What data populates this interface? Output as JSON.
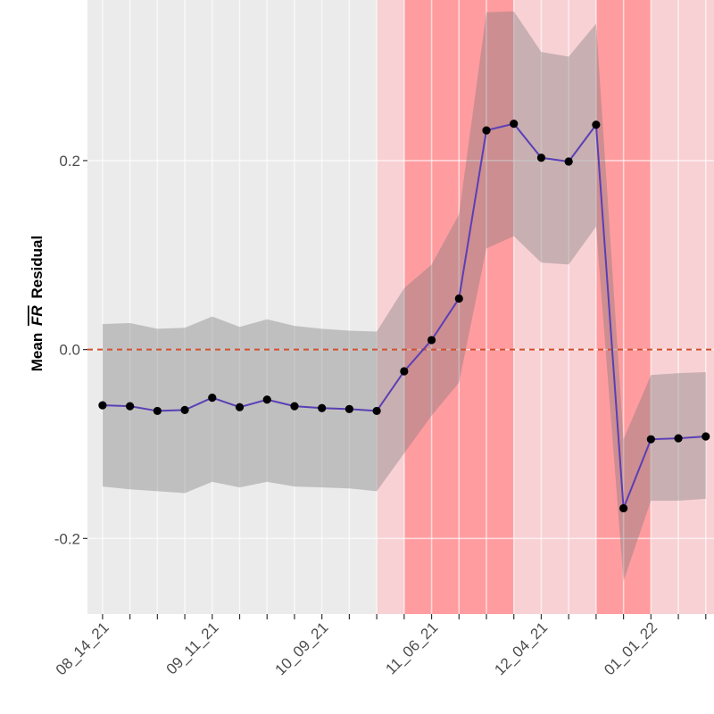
{
  "chart_data": {
    "type": "line",
    "title": "",
    "ylabel_main": "Mean",
    "ylabel_symbol": "FR",
    "ylabel_suffix": "Residual",
    "ylim": [
      -0.28,
      0.37
    ],
    "yticks": [
      -0.2,
      0.0,
      0.2
    ],
    "ytick_labels": [
      "-0.2",
      "0.0",
      "0.2"
    ],
    "x_index_range": [
      -0.55,
      22.3
    ],
    "xtick_positions": [
      0,
      4,
      8,
      12,
      16,
      20
    ],
    "xtick_labels": [
      "08_14_21",
      "09_11_21",
      "10_09_21",
      "11_06_21",
      "12_04_21",
      "01_01_22"
    ],
    "reference_line": {
      "y": 0.0,
      "color": "#d2502e",
      "style": "dashed"
    },
    "shaded_periods": [
      {
        "x_start": 10,
        "x_end": 22.3,
        "color": "#f8d1d4"
      },
      {
        "x_start": 11,
        "x_end": 15,
        "color": "#ff9ca0"
      },
      {
        "x_start": 18,
        "x_end": 20,
        "color": "#ff9ca0"
      }
    ],
    "series": [
      {
        "x": [
          0,
          1,
          2,
          3,
          4,
          5,
          6,
          7,
          8,
          9,
          10,
          11,
          12,
          13,
          14,
          15,
          16,
          17,
          18,
          19,
          20,
          21,
          22
        ],
        "values": [
          -0.059,
          -0.06,
          -0.065,
          -0.064,
          -0.051,
          -0.061,
          -0.053,
          -0.06,
          -0.062,
          -0.063,
          -0.065,
          -0.023,
          0.01,
          0.054,
          0.232,
          0.239,
          0.203,
          0.199,
          0.238,
          -0.168,
          -0.095,
          -0.094,
          -0.092
        ],
        "ci_lower": [
          -0.145,
          -0.148,
          -0.15,
          -0.152,
          -0.14,
          -0.146,
          -0.14,
          -0.145,
          -0.146,
          -0.147,
          -0.15,
          -0.11,
          -0.07,
          -0.035,
          0.107,
          0.12,
          0.092,
          0.09,
          0.13,
          -0.245,
          -0.16,
          -0.16,
          -0.158
        ],
        "ci_upper": [
          0.027,
          0.028,
          0.022,
          0.023,
          0.035,
          0.024,
          0.032,
          0.025,
          0.022,
          0.02,
          0.019,
          0.065,
          0.09,
          0.143,
          0.357,
          0.358,
          0.315,
          0.31,
          0.345,
          -0.095,
          -0.027,
          -0.025,
          -0.024
        ],
        "line_color": "#5a3fb5",
        "point_color": "#000000",
        "ci_color": "#7a7a7a"
      }
    ],
    "grid": true,
    "legend": "none"
  }
}
